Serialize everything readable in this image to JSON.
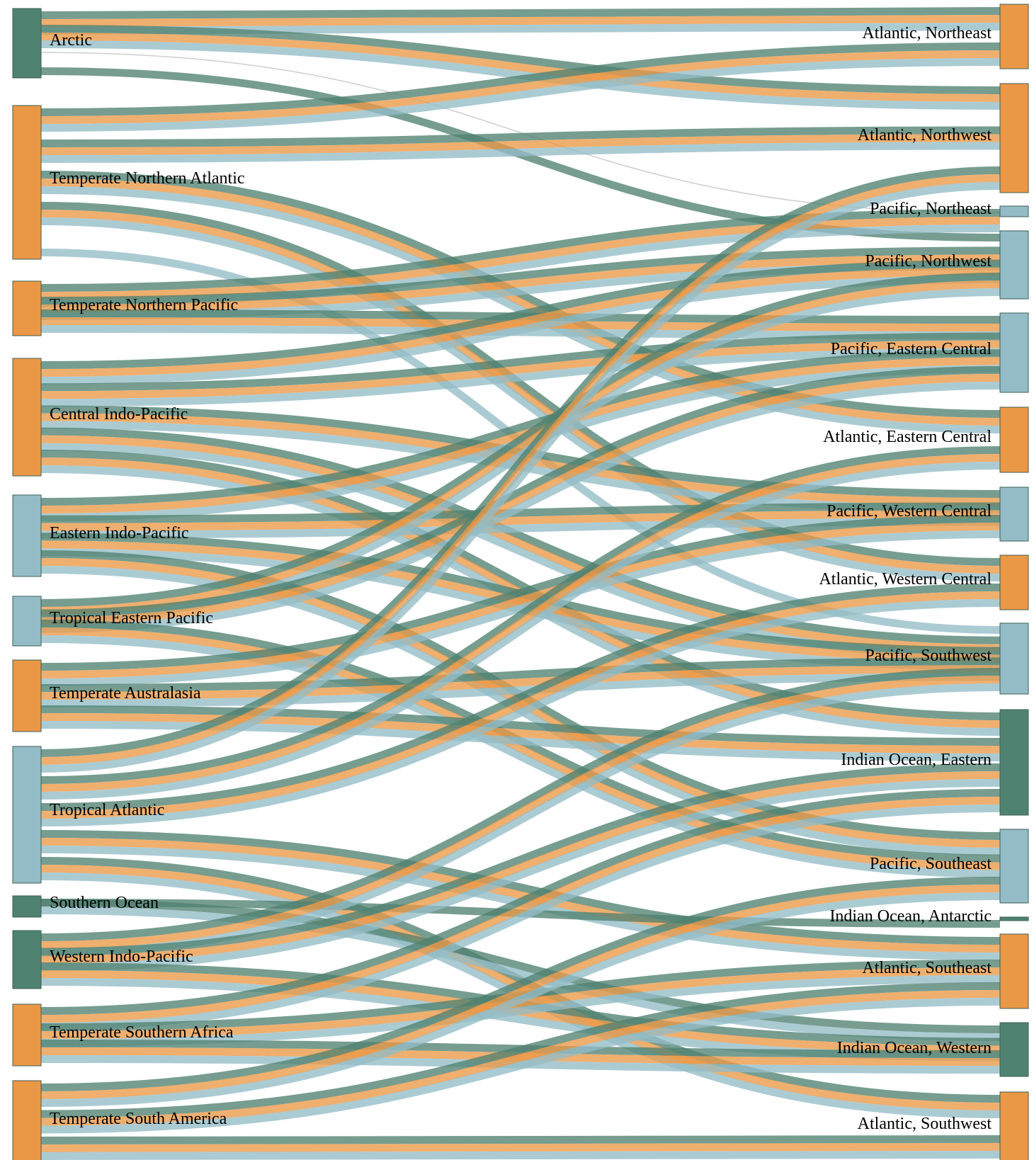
{
  "colors": {
    "orange": "#EB9846",
    "green": "#4F8271",
    "blue": "#93BCC7",
    "gray": "#c9c9c9"
  },
  "nodes_left": [
    {
      "id": "arctic",
      "label": "Arctic",
      "color": "green"
    },
    {
      "id": "tna",
      "label": "Temperate Northern Atlantic",
      "color": "orange"
    },
    {
      "id": "tnp",
      "label": "Temperate Northern Pacific",
      "color": "orange"
    },
    {
      "id": "cip",
      "label": "Central Indo-Pacific",
      "color": "orange"
    },
    {
      "id": "eip",
      "label": "Eastern Indo-Pacific",
      "color": "blue"
    },
    {
      "id": "tep",
      "label": "Tropical Eastern Pacific",
      "color": "blue"
    },
    {
      "id": "ta",
      "label": "Temperate Australasia",
      "color": "orange"
    },
    {
      "id": "tat",
      "label": "Tropical Atlantic",
      "color": "blue"
    },
    {
      "id": "so",
      "label": "Southern Ocean",
      "color": "green"
    },
    {
      "id": "wip",
      "label": "Western Indo-Pacific",
      "color": "green"
    },
    {
      "id": "tsaf",
      "label": "Temperate Southern Africa",
      "color": "orange"
    },
    {
      "id": "tsa",
      "label": "Temperate South America",
      "color": "orange"
    }
  ],
  "nodes_right": [
    {
      "id": "ane",
      "label": "Atlantic, Northeast",
      "color": "orange"
    },
    {
      "id": "anw",
      "label": "Atlantic, Northwest",
      "color": "orange"
    },
    {
      "id": "pne",
      "label": "Pacific, Northeast",
      "color": "blue"
    },
    {
      "id": "pnw",
      "label": "Pacific, Northwest",
      "color": "blue"
    },
    {
      "id": "pec",
      "label": "Pacific, Eastern Central",
      "color": "blue"
    },
    {
      "id": "aec",
      "label": "Atlantic, Eastern Central",
      "color": "orange"
    },
    {
      "id": "pwc",
      "label": "Pacific, Western Central",
      "color": "blue"
    },
    {
      "id": "awc",
      "label": "Atlantic, Western Central",
      "color": "orange"
    },
    {
      "id": "psw",
      "label": "Pacific, Southwest",
      "color": "blue"
    },
    {
      "id": "ioe",
      "label": "Indian Ocean, Eastern",
      "color": "green"
    },
    {
      "id": "pse",
      "label": "Pacific, Southeast",
      "color": "blue"
    },
    {
      "id": "ioa",
      "label": "Indian Ocean, Antarctic",
      "color": "green"
    },
    {
      "id": "ase",
      "label": "Atlantic, Southeast",
      "color": "orange"
    },
    {
      "id": "iow",
      "label": "Indian Ocean, Western",
      "color": "green"
    },
    {
      "id": "asw",
      "label": "Atlantic, Southwest",
      "color": "orange"
    }
  ],
  "flows": [
    {
      "source": "arctic",
      "target": "ane",
      "bands": [
        "green",
        "orange",
        "blue"
      ]
    },
    {
      "source": "arctic",
      "target": "anw",
      "bands": [
        "green",
        "orange",
        "blue"
      ]
    },
    {
      "source": "arctic",
      "target": "pne",
      "bands": [
        "gray"
      ]
    },
    {
      "source": "arctic",
      "target": "pnw",
      "bands": [
        "green"
      ]
    },
    {
      "source": "tna",
      "target": "ane",
      "bands": [
        "green",
        "orange",
        "blue"
      ]
    },
    {
      "source": "tna",
      "target": "anw",
      "bands": [
        "green",
        "orange",
        "blue"
      ]
    },
    {
      "source": "tna",
      "target": "aec",
      "bands": [
        "green",
        "orange",
        "blue"
      ]
    },
    {
      "source": "tna",
      "target": "awc",
      "bands": [
        "green",
        "orange",
        "blue"
      ]
    },
    {
      "source": "tna",
      "target": "psw",
      "bands": [
        "blue"
      ]
    },
    {
      "source": "tnp",
      "target": "pne",
      "bands": [
        "green",
        "orange",
        "blue"
      ]
    },
    {
      "source": "tnp",
      "target": "pnw",
      "bands": [
        "green",
        "orange",
        "blue"
      ]
    },
    {
      "source": "tnp",
      "target": "pec",
      "bands": [
        "green",
        "orange",
        "blue"
      ]
    },
    {
      "source": "cip",
      "target": "pnw",
      "bands": [
        "green",
        "orange",
        "blue"
      ]
    },
    {
      "source": "cip",
      "target": "pec",
      "bands": [
        "green",
        "orange",
        "blue"
      ]
    },
    {
      "source": "cip",
      "target": "pwc",
      "bands": [
        "green",
        "orange",
        "blue"
      ]
    },
    {
      "source": "cip",
      "target": "psw",
      "bands": [
        "green",
        "orange",
        "blue"
      ]
    },
    {
      "source": "cip",
      "target": "ioe",
      "bands": [
        "green",
        "orange",
        "blue"
      ]
    },
    {
      "source": "eip",
      "target": "pec",
      "bands": [
        "green",
        "orange",
        "blue"
      ]
    },
    {
      "source": "eip",
      "target": "pwc",
      "bands": [
        "green",
        "orange",
        "blue"
      ]
    },
    {
      "source": "eip",
      "target": "psw",
      "bands": [
        "green",
        "orange",
        "blue"
      ]
    },
    {
      "source": "eip",
      "target": "pse",
      "bands": [
        "green",
        "orange",
        "blue"
      ]
    },
    {
      "source": "tep",
      "target": "pnw",
      "bands": [
        "green",
        "orange",
        "blue"
      ]
    },
    {
      "source": "tep",
      "target": "pec",
      "bands": [
        "green",
        "orange",
        "blue"
      ]
    },
    {
      "source": "tep",
      "target": "pse",
      "bands": [
        "green",
        "orange",
        "blue"
      ]
    },
    {
      "source": "ta",
      "target": "pwc",
      "bands": [
        "green",
        "orange",
        "blue"
      ]
    },
    {
      "source": "ta",
      "target": "psw",
      "bands": [
        "green",
        "orange",
        "blue"
      ]
    },
    {
      "source": "ta",
      "target": "ioe",
      "bands": [
        "green",
        "orange",
        "blue"
      ]
    },
    {
      "source": "tat",
      "target": "anw",
      "bands": [
        "green",
        "orange",
        "blue"
      ]
    },
    {
      "source": "tat",
      "target": "aec",
      "bands": [
        "green",
        "orange",
        "blue"
      ]
    },
    {
      "source": "tat",
      "target": "awc",
      "bands": [
        "green",
        "orange",
        "blue"
      ]
    },
    {
      "source": "tat",
      "target": "ase",
      "bands": [
        "green",
        "orange",
        "blue"
      ]
    },
    {
      "source": "tat",
      "target": "asw",
      "bands": [
        "green",
        "orange",
        "blue"
      ]
    },
    {
      "source": "so",
      "target": "ioa",
      "bands": [
        "green"
      ]
    },
    {
      "source": "so",
      "target": "iow",
      "bands": [
        "green",
        "blue"
      ]
    },
    {
      "source": "wip",
      "target": "psw",
      "bands": [
        "green",
        "orange",
        "blue"
      ]
    },
    {
      "source": "wip",
      "target": "ioe",
      "bands": [
        "green",
        "orange",
        "blue"
      ]
    },
    {
      "source": "wip",
      "target": "iow",
      "bands": [
        "green",
        "orange",
        "blue"
      ]
    },
    {
      "source": "tsaf",
      "target": "ioe",
      "bands": [
        "green",
        "orange",
        "blue"
      ]
    },
    {
      "source": "tsaf",
      "target": "ase",
      "bands": [
        "green",
        "orange",
        "blue"
      ]
    },
    {
      "source": "tsaf",
      "target": "iow",
      "bands": [
        "green",
        "orange",
        "blue"
      ]
    },
    {
      "source": "tsa",
      "target": "pse",
      "bands": [
        "green",
        "orange",
        "blue"
      ]
    },
    {
      "source": "tsa",
      "target": "ase",
      "bands": [
        "green",
        "orange",
        "blue"
      ]
    },
    {
      "source": "tsa",
      "target": "asw",
      "bands": [
        "green",
        "orange",
        "blue"
      ]
    }
  ]
}
